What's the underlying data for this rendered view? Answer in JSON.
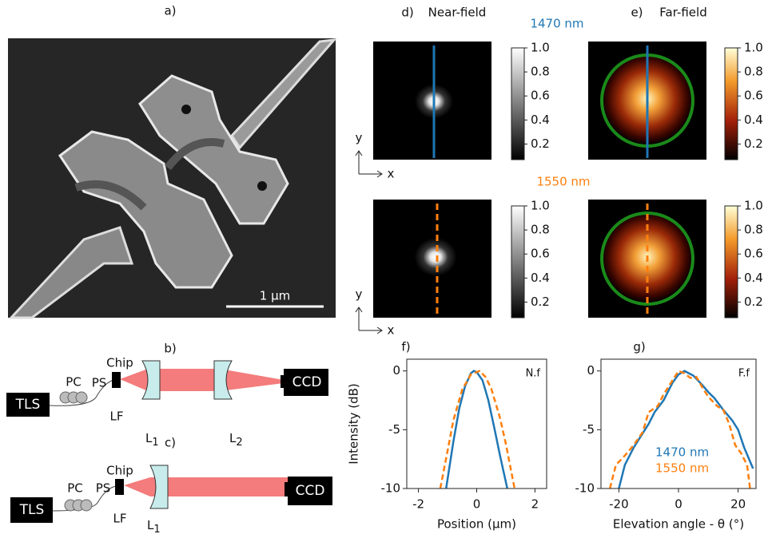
{
  "panel_labels": {
    "a": "a)",
    "b": "b)",
    "c": "c)",
    "d": "d)",
    "e": "e)",
    "f": "f)",
    "g": "g)"
  },
  "sem": {
    "scale_bar": "1 µm"
  },
  "setup_b": {
    "source": "TLS",
    "controller": "PC",
    "splitter": "PS",
    "chip": "Chip",
    "fiber": "LF",
    "lens1": {
      "name": "L",
      "sub": "1"
    },
    "lens2": {
      "name": "L",
      "sub": "2"
    },
    "camera": "CCD"
  },
  "setup_c": {
    "source": "TLS",
    "controller": "PC",
    "splitter": "PS",
    "chip": "Chip",
    "fiber": "LF",
    "lens1": {
      "name": "L",
      "sub": "1"
    },
    "camera": "CCD"
  },
  "images": {
    "near_field_title": "Near-field",
    "far_field_title": "Far-field",
    "wavelength_top": "1470 nm",
    "wavelength_bottom": "1550 nm",
    "axis_y": "y",
    "axis_x": "x",
    "colorbar": {
      "lim": [
        0.07,
        1
      ],
      "ticks": [
        0.2,
        0.4,
        0.6,
        0.8,
        {
          "value": 1,
          "label": "1.0"
        }
      ]
    }
  },
  "chart_data": [
    {
      "type": "line",
      "annotation": "N.f",
      "xlabel": "Position (µm)",
      "ylabel": "Intensity (dB)",
      "xlim": [
        -2.4,
        2.4
      ],
      "xticks": [
        -2,
        0,
        2
      ],
      "ylim": [
        -10,
        1
      ],
      "yticks": [
        -10,
        -5,
        0
      ],
      "series": [
        {
          "color": "#1f77b4",
          "dashed": false,
          "x": [
            -1.05,
            -0.8,
            -0.6,
            -0.4,
            -0.2,
            -0.1,
            0,
            0.2,
            0.4,
            0.6,
            0.8,
            1.05
          ],
          "values": [
            -10,
            -6,
            -3.2,
            -1.3,
            -0.2,
            0,
            -0.1,
            -0.8,
            -2.5,
            -4.8,
            -7.2,
            -10
          ]
        },
        {
          "color": "#ff7f0e",
          "dashed": true,
          "x": [
            -1.25,
            -1,
            -0.8,
            -0.5,
            -0.2,
            0,
            0.1,
            0.3,
            0.5,
            0.8,
            1.0,
            1.3
          ],
          "values": [
            -10,
            -6.8,
            -4.2,
            -1.6,
            -0.3,
            -0.1,
            0,
            -0.5,
            -1.5,
            -4,
            -6.2,
            -10
          ]
        }
      ]
    },
    {
      "type": "line",
      "annotation": "F.f",
      "xlabel": "Elevation angle - θ (°)",
      "xlim": [
        -26,
        26
      ],
      "xticks": [
        -20,
        0,
        20
      ],
      "ylim": [
        -10,
        1
      ],
      "yticks": [
        -10,
        -5,
        0
      ],
      "legend": "lower left",
      "series": [
        {
          "name": "1470 nm",
          "color": "#1f77b4",
          "dashed": false,
          "x": [
            -20,
            -18,
            -15,
            -12,
            -10,
            -8,
            -5,
            -2,
            0,
            2,
            5,
            8,
            10,
            12,
            15,
            18,
            20,
            22,
            25
          ],
          "values": [
            -10,
            -8,
            -6.5,
            -5.3,
            -4.5,
            -3.5,
            -2.5,
            -1,
            -0.3,
            0,
            -0.4,
            -1.2,
            -1.8,
            -2.3,
            -3.3,
            -4.2,
            -5,
            -6.5,
            -8.3
          ]
        },
        {
          "name": "1550 nm",
          "color": "#ff7f0e",
          "dashed": true,
          "x": [
            -23,
            -21,
            -18,
            -15,
            -12,
            -10,
            -7,
            -5,
            -2,
            0,
            2,
            4,
            6,
            8,
            10,
            13,
            15,
            17,
            19,
            21,
            23,
            24
          ],
          "values": [
            -10,
            -8,
            -7.2,
            -6.3,
            -5.2,
            -3.5,
            -3,
            -2,
            -0.8,
            0,
            -0.2,
            -0.6,
            -0.5,
            -1.4,
            -2.2,
            -3,
            -3.3,
            -4.5,
            -6.3,
            -7,
            -8,
            -10
          ]
        }
      ]
    }
  ]
}
